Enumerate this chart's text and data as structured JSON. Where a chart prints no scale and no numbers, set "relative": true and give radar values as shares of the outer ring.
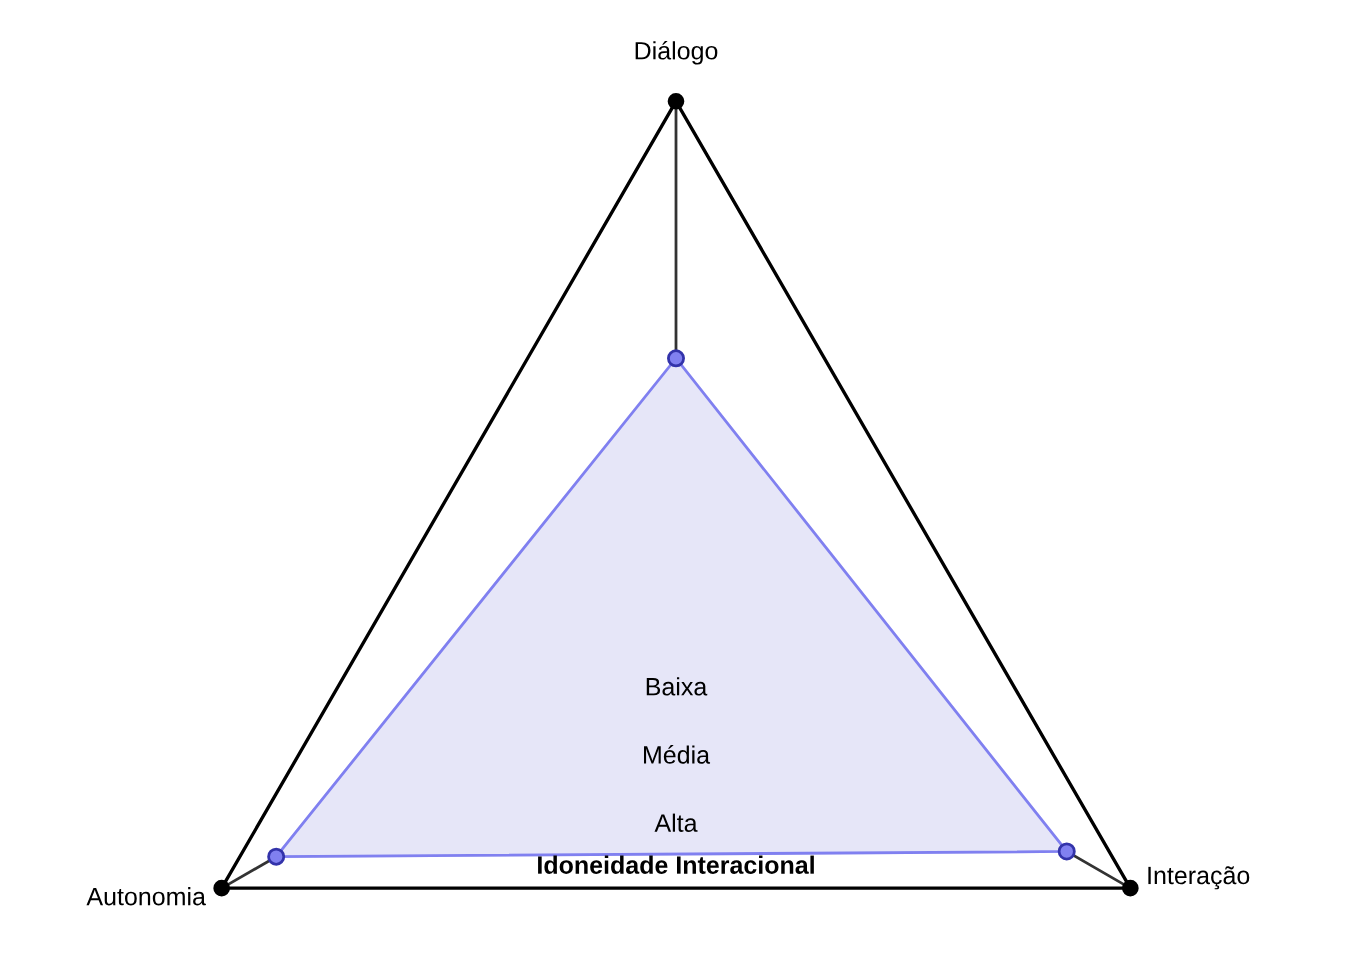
{
  "chart_data": {
    "type": "radar",
    "title": "Idoneidade Interacional",
    "relative": true,
    "categories": [
      "Diálogo",
      "Interação",
      "Autonomia"
    ],
    "series": [
      {
        "color": "#8080f0",
        "values": [
          0.51,
          0.86,
          0.88
        ]
      }
    ],
    "annotations": [
      "Baixa",
      "Média",
      "Alta"
    ],
    "marker": "circle"
  }
}
